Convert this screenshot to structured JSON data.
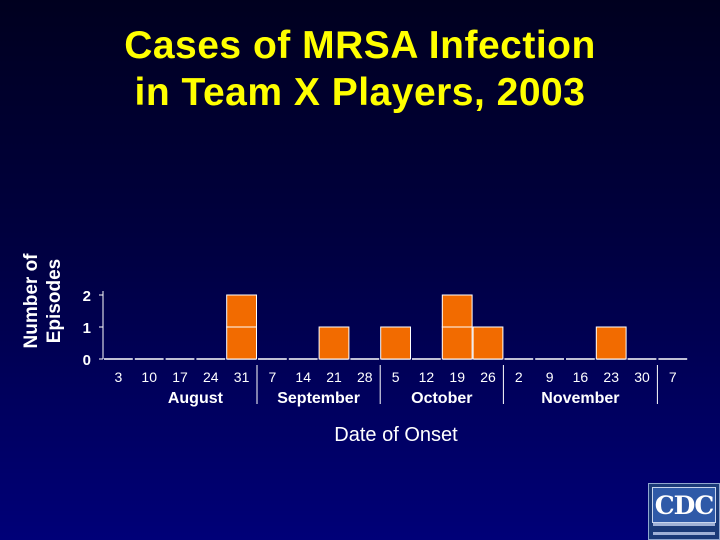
{
  "chart_data": {
    "type": "bar",
    "title": "Cases of MRSA Infection in Team X Players, 2003",
    "title_lines": [
      "Cases of MRSA Infection",
      "in Team X Players, 2003"
    ],
    "ylabel_lines": [
      "Number of",
      "Episodes"
    ],
    "xlabel": "Date of Onset",
    "yticks": [
      "0",
      "1",
      "2"
    ],
    "ylim": [
      0,
      2
    ],
    "grid": false,
    "x_ticks": [
      "3",
      "10",
      "17",
      "24",
      "31",
      "7",
      "14",
      "21",
      "28",
      "5",
      "12",
      "19",
      "26",
      "2",
      "9",
      "16",
      "23",
      "30",
      "7"
    ],
    "months": [
      {
        "label": "August",
        "start": 1,
        "end": 4
      },
      {
        "label": "September",
        "start": 5,
        "end": 8
      },
      {
        "label": "October",
        "start": 9,
        "end": 12
      },
      {
        "label": "November",
        "start": 13,
        "end": 17
      }
    ],
    "month_dividers": [
      4,
      8,
      12,
      17
    ],
    "values": [
      0,
      0,
      0,
      0,
      2,
      0,
      0,
      1,
      0,
      1,
      0,
      2,
      1,
      0,
      0,
      0,
      1,
      0,
      0
    ],
    "bar_color": "#f26b00",
    "bar_edge": "#ffffff"
  },
  "logo": {
    "text": "CDC"
  }
}
